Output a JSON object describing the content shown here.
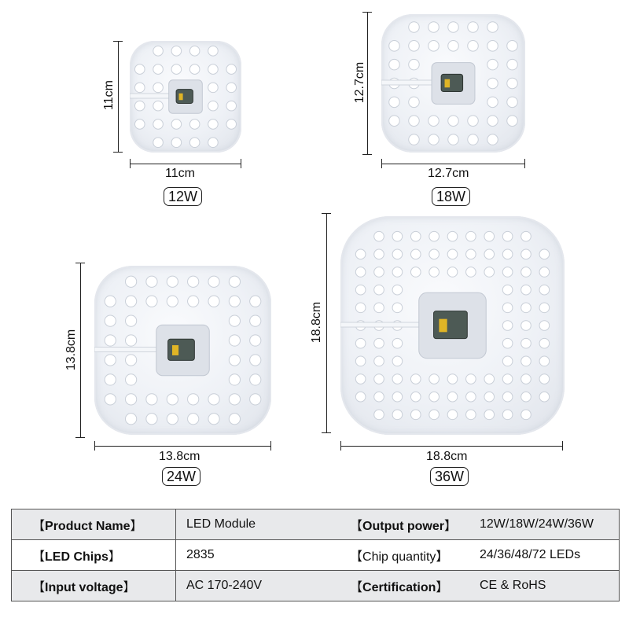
{
  "modules": [
    {
      "wattage": "12W",
      "width_label": "11cm",
      "height_label": "11cm"
    },
    {
      "wattage": "18W",
      "width_label": "12.7cm",
      "height_label": "12.7cm"
    },
    {
      "wattage": "24W",
      "width_label": "13.8cm",
      "height_label": "13.8cm"
    },
    {
      "wattage": "36W",
      "width_label": "18.8cm",
      "height_label": "18.8cm"
    }
  ],
  "specs": {
    "bracket_open": "【",
    "bracket_close": "】",
    "rows": [
      {
        "label1": "Product Name",
        "value1": "LED Module",
        "label2": "Output power",
        "value2": "12W/18W/24W/36W"
      },
      {
        "label1": "LED Chips",
        "value1": "2835",
        "label2": "Chip quantity",
        "value2": "24/36/48/72 LEDs"
      },
      {
        "label1": "Input voltage",
        "value1": "AC 170-240V",
        "label2": "Certification",
        "value2": "CE & RoHS"
      }
    ]
  },
  "colors": {
    "table_shade": "#e8e9eb",
    "led": "#ffffff",
    "board": "#dde1e8"
  }
}
